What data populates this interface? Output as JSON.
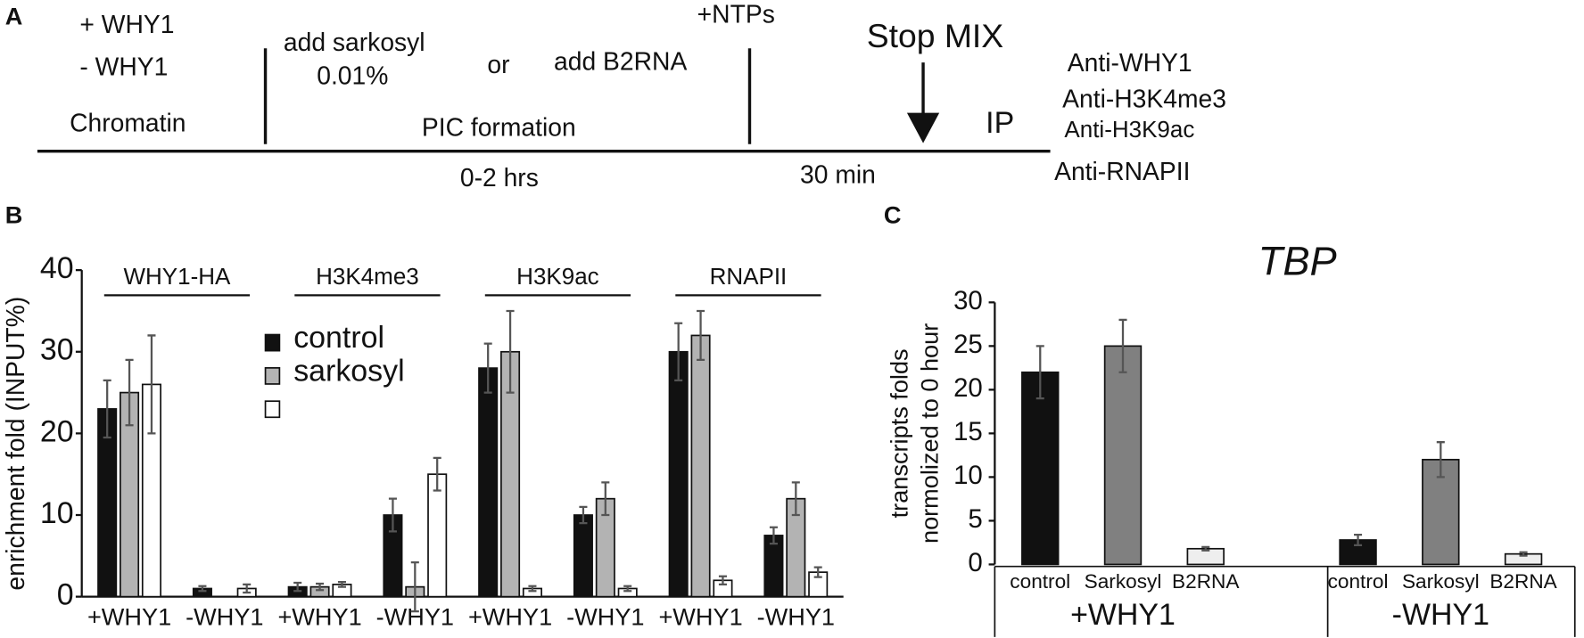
{
  "panel_labels": [
    "A",
    "B",
    "C"
  ],
  "diagram": {
    "plus_why1": "+ WHY1",
    "minus_why1": "- WHY1",
    "chromatin": "Chromatin",
    "add_sarkosyl": "add sarkosyl",
    "sarkosyl_conc": "0.01%",
    "or": "or",
    "add_b2rna": "add B2RNA",
    "pic_formation": "PIC formation",
    "ntps": "+NTPs",
    "stop_mix": "Stop MIX",
    "ip": "IP",
    "antibodies": [
      "Anti-WHY1",
      "Anti-H3K4me3",
      "Anti-H3K9ac",
      "Anti-RNAPII"
    ],
    "time_1": "0-2 hrs",
    "time_2": "30 min"
  },
  "chart_data": [
    {
      "type": "bar",
      "y_label": "enrichment fold (INPUT%)",
      "ylim": [
        0,
        40
      ],
      "yticks": [
        0,
        10,
        20,
        30,
        40
      ],
      "categories": [
        "+WHY1",
        "-WHY1",
        "+WHY1",
        "-WHY1",
        "+WHY1",
        "-WHY1",
        "+WHY1",
        "-WHY1"
      ],
      "groups": [
        "WHY1-HA",
        "H3K4me3",
        "H3K9ac",
        "RNAPII"
      ],
      "series": [
        {
          "name": "control",
          "color": "#111111",
          "values": [
            23,
            1,
            1.2,
            10,
            28,
            10,
            30,
            7.5
          ],
          "errors": [
            3.5,
            0.3,
            0.5,
            2,
            3,
            1,
            3.5,
            1
          ]
        },
        {
          "name": "sarkosyl",
          "color": "#b3b3b3",
          "values": [
            25,
            0,
            1.2,
            1.2,
            30,
            12,
            32,
            12
          ],
          "errors": [
            4,
            0,
            0.4,
            3,
            5,
            2,
            3,
            2
          ]
        },
        {
          "color": "#ffffff",
          "values": [
            26,
            1,
            1.5,
            15,
            1,
            1,
            2,
            3
          ],
          "errors": [
            6,
            0.5,
            0.3,
            2,
            0.3,
            0.3,
            0.5,
            0.6
          ]
        }
      ]
    },
    {
      "type": "bar",
      "title": "TBP",
      "y_label": [
        "transcripts folds",
        "normolized to 0 hour"
      ],
      "ylim": [
        0,
        30
      ],
      "yticks": [
        0,
        5,
        10,
        15,
        20,
        25,
        30
      ],
      "categories": [
        "control",
        "Sarkosyl",
        "B2RNA",
        "control",
        "Sarkosyl",
        "B2RNA"
      ],
      "groups": [
        "+WHY1",
        "-WHY1"
      ],
      "values": [
        22,
        25,
        1.8,
        2.8,
        12,
        1.2
      ],
      "errors": [
        3,
        3,
        0.2,
        0.6,
        2,
        0.2
      ],
      "colors": [
        "#111111",
        "#808080",
        "#eeeeee",
        "#111111",
        "#808080",
        "#eeeeee"
      ]
    }
  ]
}
